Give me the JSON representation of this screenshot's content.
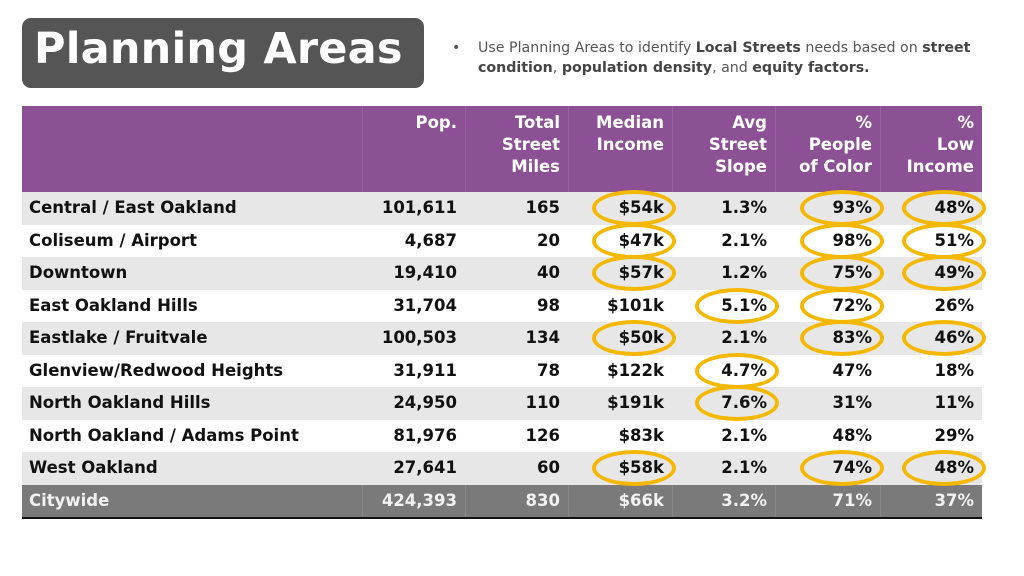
{
  "title": "Planning Areas",
  "bullet": {
    "marker": "•",
    "parts": [
      {
        "text": "Use Planning Areas to identify ",
        "bold": false
      },
      {
        "text": "Local Streets",
        "bold": true
      },
      {
        "text": " needs based on ",
        "bold": false
      },
      {
        "text": "street condition",
        "bold": true
      },
      {
        "text": ", ",
        "bold": false
      },
      {
        "text": "population density",
        "bold": true
      },
      {
        "text": ", and ",
        "bold": false
      },
      {
        "text": "equity factors.",
        "bold": true
      }
    ]
  },
  "colors": {
    "header": "#8c5195",
    "title_box": "#555555",
    "highlight": "#f5b800",
    "total_row": "#7a7a7a",
    "shaded_row": "#e7e7e7"
  },
  "table": {
    "columns": [
      {
        "key": "name",
        "lines": [
          ""
        ]
      },
      {
        "key": "pop",
        "lines": [
          "Pop."
        ]
      },
      {
        "key": "miles",
        "lines": [
          "Total",
          "Street",
          "Miles"
        ]
      },
      {
        "key": "income",
        "lines": [
          "Median",
          "Income"
        ]
      },
      {
        "key": "slope",
        "lines": [
          "Avg",
          "Street",
          "Slope"
        ]
      },
      {
        "key": "poc",
        "lines": [
          "%",
          "People",
          "of Color"
        ]
      },
      {
        "key": "low",
        "lines": [
          "%",
          "Low",
          "Income"
        ]
      }
    ],
    "rows": [
      {
        "name": "Central / East Oakland",
        "pop": "101,611",
        "miles": "165",
        "income": "$54k",
        "slope": "1.3%",
        "poc": "93%",
        "low": "48%",
        "highlighted": [
          "income",
          "poc",
          "low"
        ]
      },
      {
        "name": "Coliseum / Airport",
        "pop": "4,687",
        "miles": "20",
        "income": "$47k",
        "slope": "2.1%",
        "poc": "98%",
        "low": "51%",
        "highlighted": [
          "income",
          "poc",
          "low"
        ]
      },
      {
        "name": "Downtown",
        "pop": "19,410",
        "miles": "40",
        "income": "$57k",
        "slope": "1.2%",
        "poc": "75%",
        "low": "49%",
        "highlighted": [
          "income",
          "poc",
          "low"
        ]
      },
      {
        "name": "East Oakland Hills",
        "pop": "31,704",
        "miles": "98",
        "income": "$101k",
        "slope": "5.1%",
        "poc": "72%",
        "low": "26%",
        "highlighted": [
          "slope",
          "poc"
        ]
      },
      {
        "name": "Eastlake / Fruitvale",
        "pop": "100,503",
        "miles": "134",
        "income": "$50k",
        "slope": "2.1%",
        "poc": "83%",
        "low": "46%",
        "highlighted": [
          "income",
          "poc",
          "low"
        ]
      },
      {
        "name": "Glenview/Redwood Heights",
        "pop": "31,911",
        "miles": "78",
        "income": "$122k",
        "slope": "4.7%",
        "poc": "47%",
        "low": "18%",
        "highlighted": [
          "slope"
        ]
      },
      {
        "name": "North Oakland Hills",
        "pop": "24,950",
        "miles": "110",
        "income": "$191k",
        "slope": "7.6%",
        "poc": "31%",
        "low": "11%",
        "highlighted": [
          "slope"
        ]
      },
      {
        "name": "North Oakland / Adams Point",
        "pop": "81,976",
        "miles": "126",
        "income": "$83k",
        "slope": "2.1%",
        "poc": "48%",
        "low": "29%",
        "highlighted": []
      },
      {
        "name": "West Oakland",
        "pop": "27,641",
        "miles": "60",
        "income": "$58k",
        "slope": "2.1%",
        "poc": "74%",
        "low": "48%",
        "highlighted": [
          "income",
          "poc",
          "low"
        ]
      }
    ],
    "total": {
      "name": "Citywide",
      "pop": "424,393",
      "miles": "830",
      "income": "$66k",
      "slope": "3.2%",
      "poc": "71%",
      "low": "37%"
    }
  }
}
